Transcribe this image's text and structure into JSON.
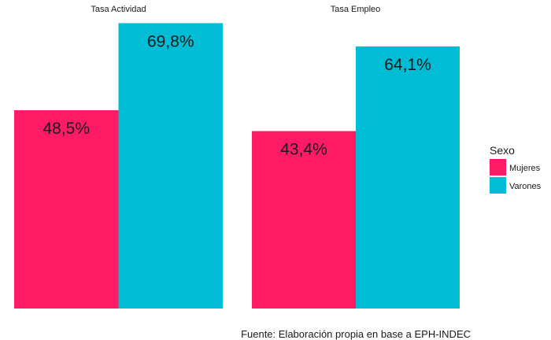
{
  "chart_data": {
    "type": "bar",
    "facets": [
      "Tasa Actividad",
      "Tasa Empleo"
    ],
    "series": [
      {
        "name": "Mujeres",
        "values": [
          48.5,
          43.4
        ],
        "labels": [
          "48,5%",
          "43,4%"
        ]
      },
      {
        "name": "Varones",
        "values": [
          69.8,
          64.1
        ],
        "labels": [
          "69,8%",
          "64,1%"
        ]
      }
    ],
    "ylim": [
      0,
      72
    ],
    "grid": false,
    "legend": {
      "title": "Sexo",
      "placement": "right"
    },
    "caption": "Fuente: Elaboración propia en base a EPH-INDEC"
  },
  "colors": {
    "Mujeres": "#FF1A66",
    "Varones": "#00BCD4"
  }
}
